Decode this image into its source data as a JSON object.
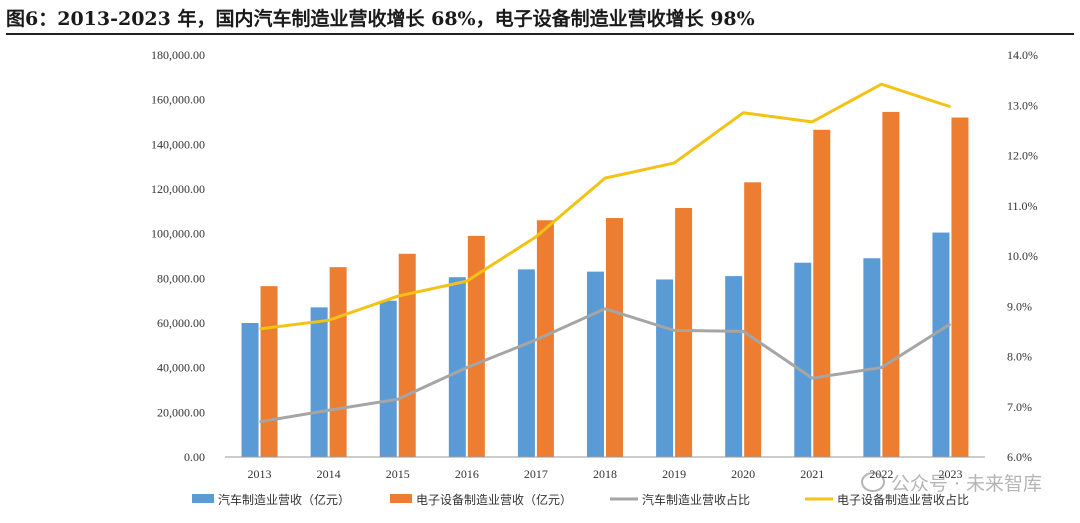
{
  "title": "图6：2013-2023 年，国内汽车制造业营收增长 68%，电子设备制造业营收增长 98%",
  "watermark": "公众号 · 未来智库",
  "colors": {
    "auto_bar": "#5B9BD5",
    "elec_bar": "#ED7D31",
    "auto_line": "#A5A5A5",
    "elec_line": "#F2C314"
  },
  "chart_data": {
    "type": "bar",
    "categories": [
      "2013",
      "2014",
      "2015",
      "2016",
      "2017",
      "2018",
      "2019",
      "2020",
      "2021",
      "2022",
      "2023"
    ],
    "series": [
      {
        "name": "汽车制造业营收（亿元）",
        "type": "bar",
        "axis": "left",
        "values": [
          60000,
          67000,
          70000,
          80500,
          84000,
          83000,
          79500,
          81000,
          87000,
          89000,
          100500
        ]
      },
      {
        "name": "电子设备制造业营收（亿元）",
        "type": "bar",
        "axis": "left",
        "values": [
          76500,
          85000,
          91000,
          99000,
          106000,
          107000,
          111500,
          123000,
          146500,
          154500,
          152000
        ]
      },
      {
        "name": "汽车制造业营收占比",
        "type": "line",
        "axis": "right",
        "values": [
          6.7,
          6.93,
          7.15,
          7.78,
          8.33,
          8.95,
          8.52,
          8.5,
          7.57,
          7.78,
          8.65
        ]
      },
      {
        "name": "电子设备制造业营收占比",
        "type": "line",
        "axis": "right",
        "values": [
          8.55,
          8.72,
          9.2,
          9.5,
          10.38,
          11.55,
          11.85,
          12.85,
          12.67,
          13.42,
          12.97
        ]
      }
    ],
    "ylim": [
      0,
      180000
    ],
    "y2lim": [
      6.0,
      14.0
    ],
    "y_ticks": [
      "0.00",
      "20,000.00",
      "40,000.00",
      "60,000.00",
      "80,000.00",
      "100,000.00",
      "120,000.00",
      "140,000.00",
      "160,000.00",
      "180,000.00"
    ],
    "y2_ticks": [
      "6.0%",
      "7.0%",
      "8.0%",
      "9.0%",
      "10.0%",
      "11.0%",
      "12.0%",
      "13.0%",
      "14.0%"
    ],
    "grid": false,
    "legend_position": "bottom"
  }
}
